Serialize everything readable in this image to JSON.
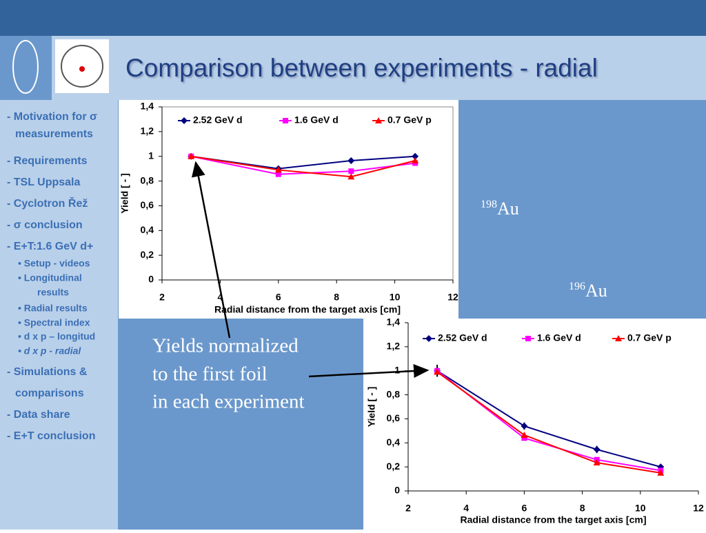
{
  "header": {
    "title": "Comparison between experiments - radial"
  },
  "sidebar": {
    "items": [
      "- Motivation for σ",
      "measurements",
      "- Requirements",
      "- TSL Uppsala",
      "- Cyclotron Řež",
      "- σ conclusion",
      "- E+T:1.6 GeV d+",
      "• Setup - videos",
      "• Longitudinal",
      "results",
      "• Radial results",
      "• Spectral index",
      "• d x p – longitud",
      "• d x p - radial",
      "- Simulations &",
      "comparisons",
      "- Data share",
      "- E+T conclusion"
    ]
  },
  "isotopes": [
    {
      "mass": "198",
      "element": "Au"
    },
    {
      "mass": "196",
      "element": "Au"
    }
  ],
  "note": [
    "Yields normalized",
    "to the first foil",
    "in each experiment"
  ],
  "chart_data": [
    {
      "type": "line",
      "x": [
        3,
        6,
        8.5,
        10.7
      ],
      "xlabel": "Radial distance from the target axis [cm]",
      "ylabel": "Yield [ - ]",
      "xlim": [
        2,
        12
      ],
      "xticks": [
        2,
        4,
        6,
        8,
        10,
        12
      ],
      "ylim": [
        0,
        1.4
      ],
      "yticks": [
        0,
        {
          "value": 0.2,
          "label": "0,2"
        },
        {
          "value": 0.4,
          "label": "0,4"
        },
        {
          "value": 0.6,
          "label": "0,6"
        },
        {
          "value": 0.8,
          "label": "0,8"
        },
        1,
        {
          "value": 1.2,
          "label": "1,2"
        },
        {
          "value": 1.4,
          "label": "1,4"
        }
      ],
      "legend": "top",
      "grid": false,
      "series": [
        {
          "name": "2.52 GeV d",
          "color": "#000080",
          "marker": "diamond",
          "values": [
            1.0,
            0.9,
            0.965,
            1.0
          ]
        },
        {
          "name": "1.6 GeV d",
          "color": "#ff00ff",
          "marker": "square",
          "values": [
            1.0,
            0.855,
            0.88,
            0.945
          ]
        },
        {
          "name": "0.7 GeV p",
          "color": "#ff0000",
          "marker": "triangle",
          "values": [
            1.0,
            0.89,
            0.835,
            0.965
          ]
        }
      ]
    },
    {
      "type": "line",
      "x": [
        3,
        6,
        8.5,
        10.7
      ],
      "xlabel": "Radial distance from the target axis [cm]",
      "ylabel": "Yield [ - ]",
      "xlim": [
        2,
        12
      ],
      "xticks": [
        2,
        4,
        6,
        8,
        10,
        12
      ],
      "ylim": [
        0,
        1.4
      ],
      "yticks": [
        0,
        {
          "value": 0.2,
          "label": "0,2"
        },
        {
          "value": 0.4,
          "label": "0,4"
        },
        {
          "value": 0.6,
          "label": "0,6"
        },
        {
          "value": 0.8,
          "label": "0,8"
        },
        1,
        {
          "value": 1.2,
          "label": "1,2"
        },
        {
          "value": 1.4,
          "label": "1,4"
        }
      ],
      "legend": "top",
      "grid": false,
      "series": [
        {
          "name": "2.52 GeV d",
          "color": "#000080",
          "marker": "diamond",
          "values": [
            1.0,
            0.54,
            0.345,
            0.2
          ],
          "errors": [
            0.05,
            0.03,
            0.03,
            0.01
          ]
        },
        {
          "name": "1.6 GeV d",
          "color": "#ff00ff",
          "marker": "square",
          "values": [
            1.0,
            0.44,
            0.26,
            0.17
          ]
        },
        {
          "name": "0.7 GeV p",
          "color": "#ff0000",
          "marker": "triangle",
          "values": [
            0.99,
            0.465,
            0.235,
            0.15
          ]
        }
      ]
    }
  ]
}
